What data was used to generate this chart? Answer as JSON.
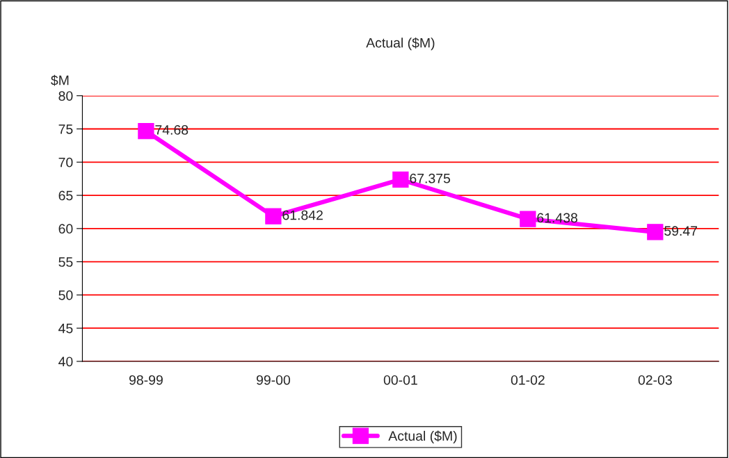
{
  "chart_data": {
    "type": "line",
    "title": "Actual ($M)",
    "ylabel": "$M",
    "categories": [
      "98-99",
      "99-00",
      "00-01",
      "01-02",
      "02-03"
    ],
    "series": [
      {
        "name": "Actual ($M)",
        "color": "#ff00ff",
        "values": [
          74.68,
          61.842,
          67.375,
          61.438,
          59.47
        ]
      }
    ],
    "ylim": [
      40,
      80
    ],
    "yticks": [
      40,
      45,
      50,
      55,
      60,
      65,
      70,
      75,
      80
    ],
    "grid": "y",
    "legend": "bottom",
    "marker": "square",
    "line_style": "solid",
    "data_labels": true
  }
}
